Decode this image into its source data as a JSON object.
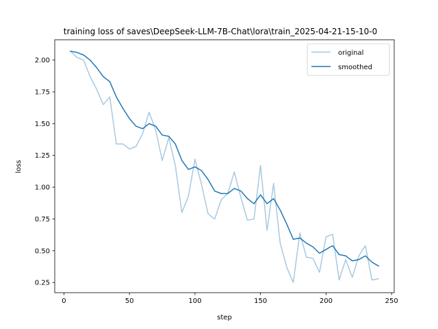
{
  "chart_data": {
    "type": "line",
    "title": "training loss of saves\\DeepSeek-LLM-7B-Chat\\lora\\train_2025-04-21-15-10-0",
    "xlabel": "step",
    "ylabel": "loss",
    "xlim": [
      -7,
      252
    ],
    "ylim": [
      0.17,
      2.16
    ],
    "xticks": [
      0,
      50,
      100,
      150,
      200,
      250
    ],
    "yticks": [
      0.25,
      0.5,
      0.75,
      1.0,
      1.25,
      1.5,
      1.75,
      2.0
    ],
    "xtick_labels": [
      "0",
      "50",
      "100",
      "150",
      "200",
      "250"
    ],
    "ytick_labels": [
      "0.25",
      "0.50",
      "0.75",
      "1.00",
      "1.25",
      "1.50",
      "1.75",
      "2.00"
    ],
    "legend_position": "upper right",
    "grid": false,
    "x": [
      5,
      10,
      15,
      20,
      25,
      30,
      35,
      40,
      45,
      50,
      55,
      60,
      65,
      70,
      75,
      80,
      85,
      90,
      95,
      100,
      105,
      110,
      115,
      120,
      125,
      130,
      135,
      140,
      145,
      150,
      155,
      160,
      165,
      170,
      175,
      180,
      185,
      190,
      195,
      200,
      205,
      210,
      215,
      220,
      225,
      230,
      235,
      240
    ],
    "series": [
      {
        "name": "original",
        "color": "#a6c9e0",
        "values": [
          2.07,
          2.02,
          2.0,
          1.87,
          1.77,
          1.65,
          1.71,
          1.34,
          1.34,
          1.3,
          1.32,
          1.42,
          1.59,
          1.45,
          1.21,
          1.39,
          1.17,
          0.8,
          0.93,
          1.22,
          1.02,
          0.79,
          0.75,
          0.9,
          0.95,
          1.12,
          0.92,
          0.74,
          0.75,
          1.17,
          0.66,
          1.03,
          0.56,
          0.37,
          0.25,
          0.64,
          0.45,
          0.44,
          0.33,
          0.61,
          0.63,
          0.27,
          0.43,
          0.29,
          0.46,
          0.54,
          0.27,
          0.28
        ]
      },
      {
        "name": "smoothed",
        "color": "#1f77b4",
        "values": [
          2.07,
          2.06,
          2.04,
          2.0,
          1.94,
          1.87,
          1.83,
          1.71,
          1.62,
          1.54,
          1.48,
          1.46,
          1.5,
          1.48,
          1.41,
          1.4,
          1.34,
          1.21,
          1.14,
          1.16,
          1.13,
          1.06,
          0.97,
          0.95,
          0.95,
          0.99,
          0.97,
          0.91,
          0.87,
          0.94,
          0.87,
          0.91,
          0.82,
          0.71,
          0.59,
          0.6,
          0.56,
          0.53,
          0.48,
          0.51,
          0.54,
          0.47,
          0.46,
          0.42,
          0.43,
          0.46,
          0.41,
          0.38
        ]
      }
    ]
  }
}
